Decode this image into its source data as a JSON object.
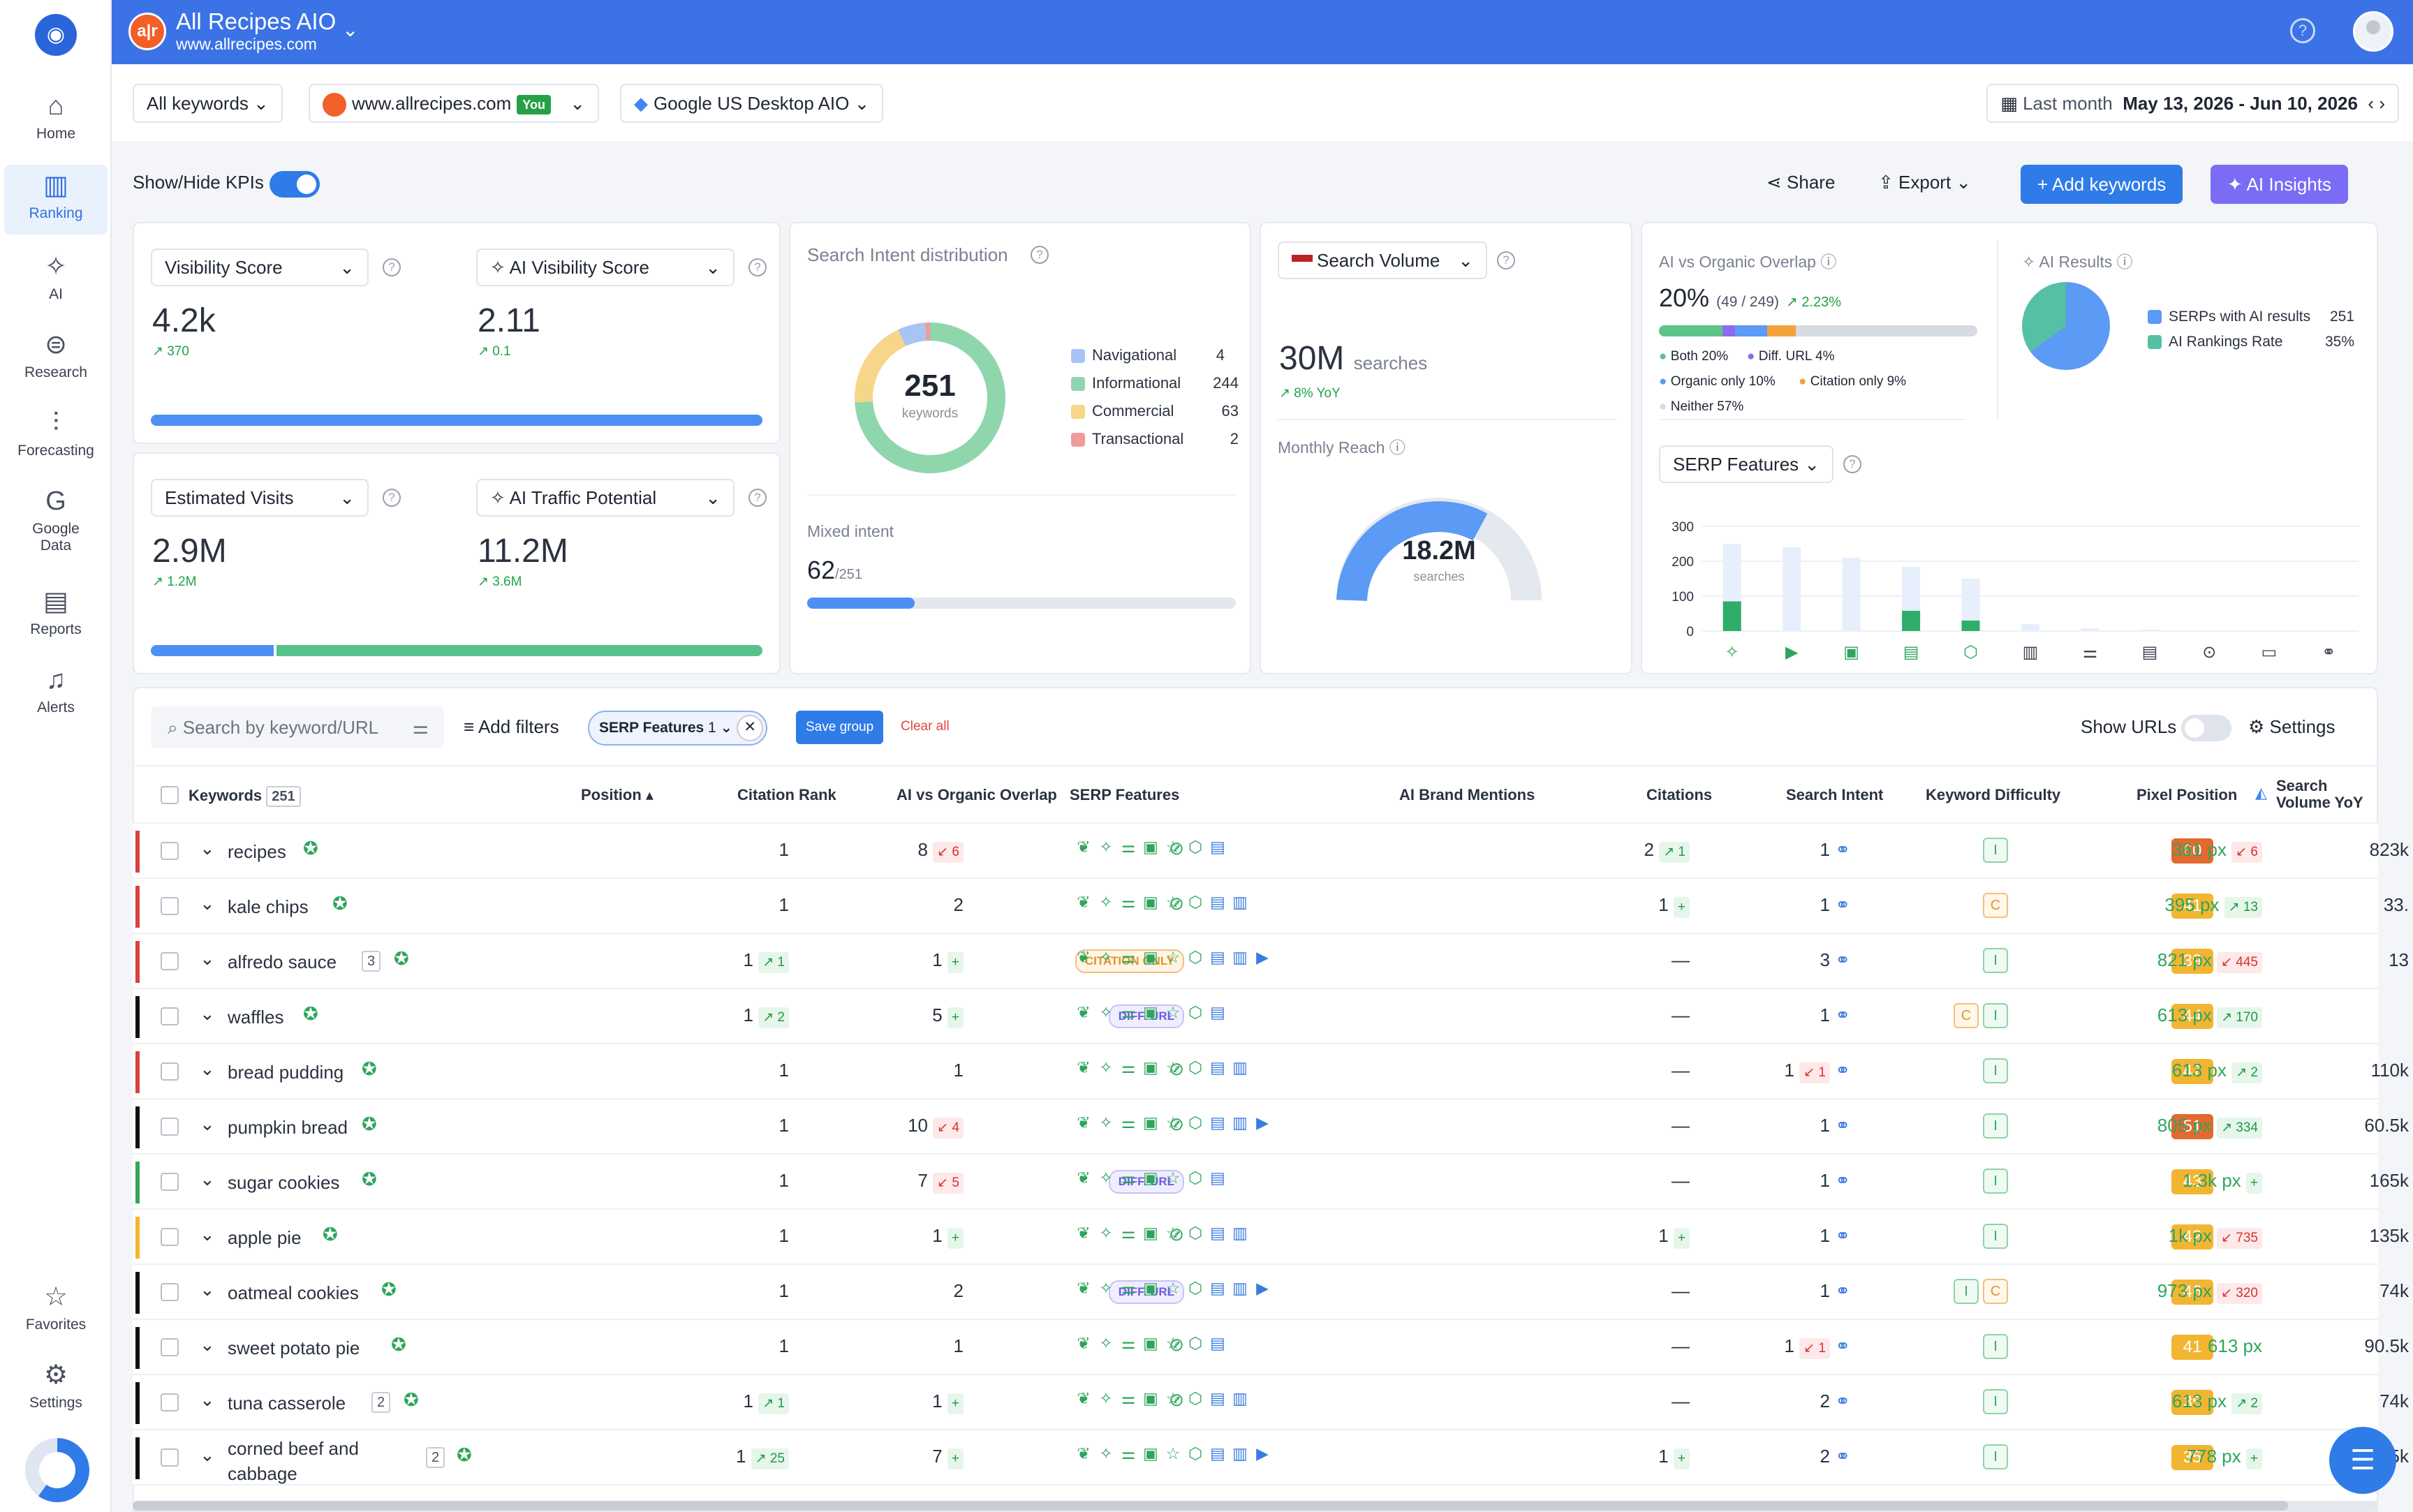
{
  "app": {
    "title": "All Recipes AIO",
    "url": "www.allrecipes.com",
    "badge": "a|r"
  },
  "sidebar": {
    "items": [
      {
        "label": "Home",
        "icon": "home-icon"
      },
      {
        "label": "Ranking",
        "icon": "ranking-icon"
      },
      {
        "label": "AI",
        "icon": "ai-icon"
      },
      {
        "label": "Research",
        "icon": "research-icon"
      },
      {
        "label": "Forecasting",
        "icon": "forecasting-icon"
      },
      {
        "label": "Google Data",
        "icon": "google-icon"
      },
      {
        "label": "Reports",
        "icon": "reports-icon"
      },
      {
        "label": "Alerts",
        "icon": "bell-icon"
      },
      {
        "label": "Favorites",
        "icon": "star-icon"
      },
      {
        "label": "Settings",
        "icon": "gear-icon"
      }
    ]
  },
  "filters": {
    "keywords": "All keywords",
    "domain": "www.allrecipes.com",
    "you": "You",
    "engine": "Google US Desktop AIO",
    "date_label": "Last month",
    "date_range": "May 13, 2026 - Jun 10, 2026"
  },
  "toolbar": {
    "kpi_toggle": "Show/Hide KPIs",
    "share": "Share",
    "export": "Export",
    "add_keywords": "Add keywords",
    "ai_insights": "AI Insights"
  },
  "kpi": {
    "visibility": {
      "label": "Visibility Score",
      "value": "4.2k",
      "delta": "370"
    },
    "ai_visibility": {
      "label": "AI Visibility Score",
      "value": "2.11",
      "delta": "0.1"
    },
    "visits": {
      "label": "Estimated Visits",
      "value": "2.9M",
      "delta": "1.2M"
    },
    "ai_traffic": {
      "label": "AI Traffic Potential",
      "value": "11.2M",
      "delta": "3.6M"
    }
  },
  "intent": {
    "title": "Search Intent distribution",
    "total": "251",
    "unit": "keywords",
    "legend": [
      {
        "label": "Navigational",
        "value": "4",
        "color": "#a7c4f5"
      },
      {
        "label": "Informational",
        "value": "244",
        "color": "#8fd6ac"
      },
      {
        "label": "Commercial",
        "value": "63",
        "color": "#f7d68a"
      },
      {
        "label": "Transactional",
        "value": "2",
        "color": "#f09a9a"
      }
    ],
    "mixed_label": "Mixed intent",
    "mixed_value": "62",
    "mixed_total": "/251"
  },
  "volume": {
    "select": "Search Volume",
    "value": "30M",
    "unit": "searches",
    "yoy": "8% YoY",
    "reach_label": "Monthly Reach",
    "reach_value": "18.2M",
    "reach_unit": "searches"
  },
  "overlap": {
    "title": "AI vs Organic Overlap",
    "pct": "20%",
    "ratio": "(49 / 249)",
    "delta": "2.23%",
    "legend": [
      {
        "label": "Both 20%",
        "color": "#5cc48a"
      },
      {
        "label": "Diff. URL 4%",
        "color": "#8b6cf0"
      },
      {
        "label": "Organic only 10%",
        "color": "#5b9af5"
      },
      {
        "label": "Citation only 9%",
        "color": "#f2a23a"
      },
      {
        "label": "Neither 57%",
        "color": "#d7dbe2"
      }
    ]
  },
  "ai_results": {
    "title": "AI Results",
    "legend": [
      {
        "label": "SERPs with AI results",
        "value": "251",
        "color": "#5b9af5"
      },
      {
        "label": "AI Rankings Rate",
        "value": "35%",
        "color": "#55c0a5"
      }
    ]
  },
  "serp_chart": {
    "select": "SERP Features",
    "yticks": [
      "300",
      "200",
      "100",
      "0"
    ]
  },
  "chart_data": {
    "type": "bar",
    "title": "SERP Features",
    "categories": [
      "c1",
      "c2",
      "c3",
      "c4",
      "c5",
      "c6",
      "c7",
      "c8",
      "c9",
      "c10",
      "c11"
    ],
    "series": [
      {
        "values": [
          250,
          240,
          210,
          185,
          150,
          20,
          8,
          4,
          2,
          2,
          2
        ]
      },
      {
        "values": [
          85,
          0,
          0,
          58,
          30,
          0,
          0,
          0,
          0,
          0,
          0
        ]
      }
    ],
    "ylim": [
      0,
      300
    ]
  },
  "table_tools": {
    "search_placeholder": "Search by keyword/URL",
    "add_filters": "Add filters",
    "chip": "SERP Features",
    "chip_count": "1",
    "save_group": "Save group",
    "clear_all": "Clear all",
    "show_urls": "Show URLs",
    "settings": "Settings"
  },
  "columns": {
    "keywords": "Keywords",
    "kw_count": "251",
    "position": "Position",
    "citation": "Citation Rank",
    "overlap": "AI vs Organic Overlap",
    "serp": "SERP Features",
    "mentions": "AI Brand Mentions",
    "citations": "Citations",
    "intent": "Search Intent",
    "kd": "Keyword Difficulty",
    "pixel": "Pixel Position",
    "volume": "Search Volume YoY"
  },
  "rows": [
    {
      "kw": "recipes",
      "stripe": "#d94040",
      "pos": "1",
      "pos_d": "",
      "cit": "8",
      "cit_d": "6",
      "cit_dir": "dn",
      "ov": "check",
      "men": "2",
      "men_d": "1",
      "cits": "1",
      "intent": [
        "I"
      ],
      "kd": "60",
      "kd_c": "#e2692f",
      "px": "361 px",
      "px_d": "6",
      "px_dir": "dn",
      "vol": "823k"
    },
    {
      "kw": "kale chips",
      "stripe": "#d94040",
      "pos": "1",
      "pos_d": "",
      "cit": "2",
      "cit_d": "",
      "cit_dir": "",
      "ov": "check",
      "men": "1",
      "men_d": "+",
      "cits": "1",
      "intent": [
        "C"
      ],
      "kd": "41",
      "kd_c": "#f2b531",
      "px": "395 px",
      "px_d": "13",
      "px_dir": "up",
      "vol": "33."
    },
    {
      "kw": "alfredo sauce",
      "badge": "3",
      "stripe": "#d94040",
      "pos": "1",
      "pos_d": "1",
      "cit": "1",
      "cit_d": "+",
      "cit_dir": "up",
      "ov": "CITATION ONLY",
      "men": "—",
      "men_d": "",
      "cits": "3",
      "intent": [
        "I"
      ],
      "kd": "39",
      "kd_c": "#f2b531",
      "px": "821 px",
      "px_d": "445",
      "px_dir": "dn",
      "vol": "13"
    },
    {
      "kw": "waffles",
      "stripe": "#111111",
      "pos": "1",
      "pos_d": "2",
      "cit": "5",
      "cit_d": "+",
      "cit_dir": "up",
      "ov": "DIFF. URL",
      "men": "—",
      "men_d": "",
      "cits": "1",
      "intent": [
        "C",
        "I"
      ],
      "kd": "44",
      "kd_c": "#f2b531",
      "px": "613 px",
      "px_d": "170",
      "px_dir": "up",
      "vol": ""
    },
    {
      "kw": "bread pudding",
      "stripe": "#d94040",
      "pos": "1",
      "pos_d": "",
      "cit": "1",
      "cit_d": "",
      "cit_dir": "",
      "ov": "check",
      "men": "—",
      "men_d": "",
      "cits": "1",
      "cits_d": "1",
      "intent": [
        "I"
      ],
      "kd": "47",
      "kd_c": "#f2b531",
      "px": "613 px",
      "px_d": "2",
      "px_dir": "up",
      "vol": "110k"
    },
    {
      "kw": "pumpkin bread",
      "stripe": "#111111",
      "pos": "1",
      "pos_d": "",
      "cit": "10",
      "cit_d": "4",
      "cit_dir": "dn",
      "ov": "check",
      "men": "—",
      "men_d": "",
      "cits": "1",
      "intent": [
        "I"
      ],
      "kd": "51",
      "kd_c": "#e2692f",
      "px": "805 px",
      "px_d": "334",
      "px_dir": "up",
      "vol": "60.5k"
    },
    {
      "kw": "sugar cookies",
      "stripe": "#3aa35a",
      "pos": "1",
      "pos_d": "",
      "cit": "7",
      "cit_d": "5",
      "cit_dir": "dn",
      "ov": "DIFF. URL",
      "men": "—",
      "men_d": "",
      "cits": "1",
      "intent": [
        "I"
      ],
      "kd": "43",
      "kd_c": "#f2b531",
      "px": "1.3k px",
      "px_d": "+",
      "px_dir": "up",
      "vol": "165k"
    },
    {
      "kw": "apple pie",
      "stripe": "#f2b531",
      "pos": "1",
      "pos_d": "",
      "cit": "1",
      "cit_d": "+",
      "cit_dir": "up",
      "ov": "check",
      "men": "1",
      "men_d": "+",
      "cits": "1",
      "intent": [
        "I"
      ],
      "kd": "42",
      "kd_c": "#f2b531",
      "px": "1k px",
      "px_d": "735",
      "px_dir": "dn",
      "vol": "135k"
    },
    {
      "kw": "oatmeal cookies",
      "stripe": "#111111",
      "pos": "1",
      "pos_d": "",
      "cit": "2",
      "cit_d": "",
      "cit_dir": "",
      "ov": "DIFF. URL",
      "men": "—",
      "men_d": "",
      "cits": "1",
      "intent": [
        "I",
        "C"
      ],
      "kd": "46",
      "kd_c": "#f2b531",
      "px": "973 px",
      "px_d": "320",
      "px_dir": "dn",
      "vol": "74k"
    },
    {
      "kw": "sweet potato pie",
      "stripe": "#111111",
      "pos": "1",
      "pos_d": "",
      "cit": "1",
      "cit_d": "",
      "cit_dir": "",
      "ov": "check",
      "men": "—",
      "men_d": "",
      "cits": "1",
      "cits_d": "1",
      "intent": [
        "I"
      ],
      "kd": "41",
      "kd_c": "#f2b531",
      "px": "613 px",
      "px_d": "",
      "px_dir": "",
      "vol": "90.5k"
    },
    {
      "kw": "tuna casserole",
      "badge": "2",
      "stripe": "#111111",
      "pos": "1",
      "pos_d": "1",
      "cit": "1",
      "cit_d": "+",
      "cit_dir": "up",
      "ov": "check",
      "men": "—",
      "men_d": "",
      "cits": "2",
      "intent": [
        "I"
      ],
      "kd": "35",
      "kd_c": "#f2b531",
      "px": "613 px",
      "px_d": "2",
      "px_dir": "up",
      "vol": "74k"
    },
    {
      "kw": "corned beef and cabbage",
      "badge": "2",
      "stripe": "#111111",
      "pos": "1",
      "pos_d": "25",
      "cit": "7",
      "cit_d": "+",
      "cit_dir": "up",
      "ov": "",
      "men": "1",
      "men_d": "+",
      "cits": "2",
      "intent": [
        "I"
      ],
      "kd": "35",
      "kd_c": "#f2b531",
      "px": "778 px",
      "px_d": "+",
      "px_dir": "up",
      "vol": "90.5k"
    }
  ]
}
